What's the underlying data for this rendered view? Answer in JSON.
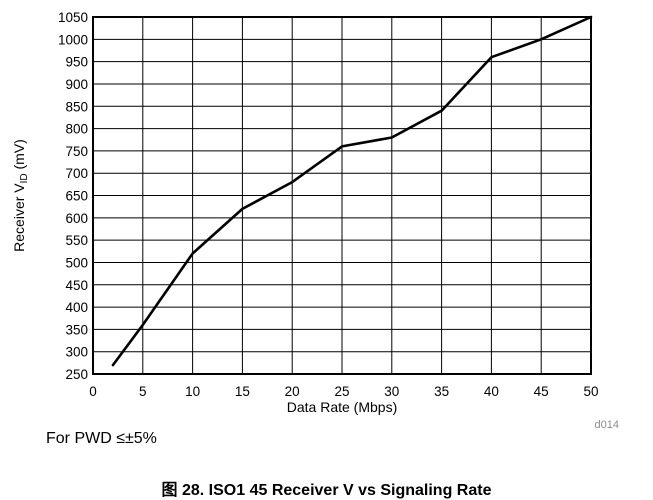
{
  "chart_data": {
    "type": "line",
    "xlabel": "Data Rate (Mbps)",
    "ylabel_main": "Receiver V",
    "ylabel_sub": "ID",
    "ylabel_unit": " (mV)",
    "xlim": [
      0,
      50
    ],
    "ylim": [
      250,
      1050
    ],
    "x_ticks": [
      0,
      5,
      10,
      15,
      20,
      25,
      30,
      35,
      40,
      45,
      50
    ],
    "y_ticks": [
      250,
      300,
      350,
      400,
      450,
      500,
      550,
      600,
      650,
      700,
      750,
      800,
      850,
      900,
      950,
      1000,
      1050
    ],
    "grid": true,
    "series": [
      {
        "x": [
          2,
          5,
          10,
          15,
          20,
          25,
          30,
          35,
          40,
          45,
          50
        ],
        "y": [
          270,
          360,
          520,
          620,
          680,
          760,
          780,
          840,
          960,
          1000,
          1050
        ]
      }
    ],
    "code": "d014",
    "note": "For PWD ≤±5%",
    "caption_prefix": "图 28.",
    "caption_text": "ISO1 45  Receiver V    vs Signaling Rate"
  }
}
